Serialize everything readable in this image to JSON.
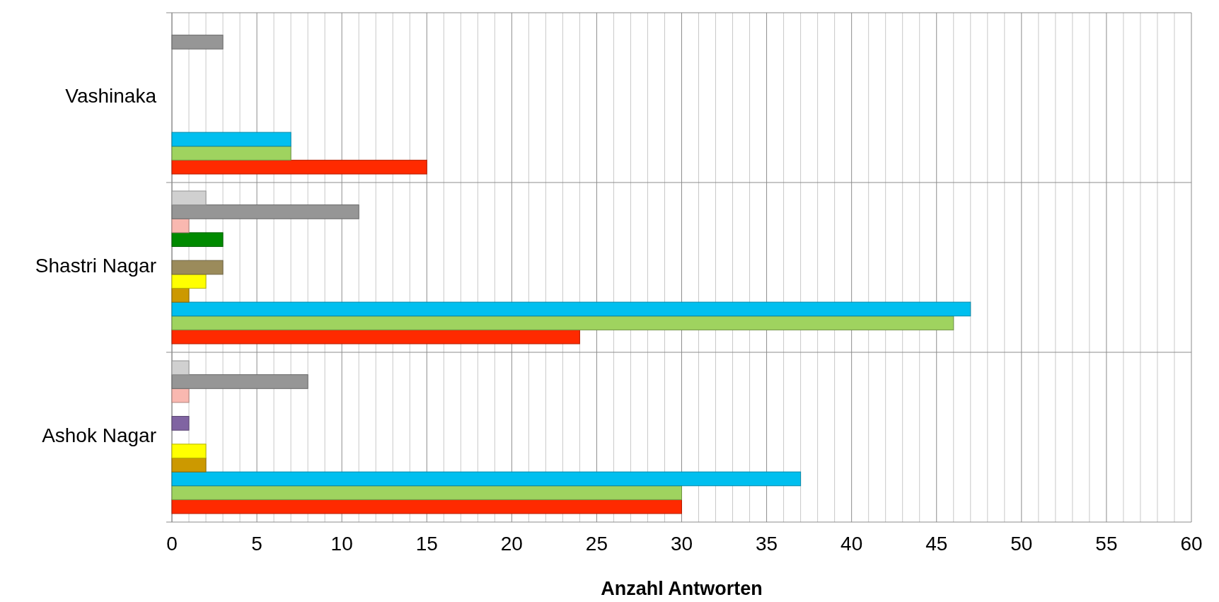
{
  "chart_data": {
    "type": "bar",
    "orientation": "horizontal",
    "xlabel": "Anzahl Antworten",
    "categories": [
      "Vashinaka",
      "Shastri Nagar",
      "Ashok Nagar"
    ],
    "series": [
      {
        "color": "#ff2a00",
        "values": [
          15,
          24,
          30
        ]
      },
      {
        "color": "#9fd35f",
        "values": [
          7,
          46,
          30
        ]
      },
      {
        "color": "#00bfef",
        "values": [
          7,
          47,
          37
        ]
      },
      {
        "color": "#cc9900",
        "values": [
          null,
          1,
          2
        ]
      },
      {
        "color": "#ffff00",
        "values": [
          null,
          2,
          2
        ]
      },
      {
        "color": "#9b8b5b",
        "values": [
          null,
          3,
          null
        ]
      },
      {
        "color": "#8064a2",
        "values": [
          null,
          null,
          1
        ]
      },
      {
        "color": "#008a00",
        "values": [
          null,
          3,
          null
        ]
      },
      {
        "color": "#f9b8b0",
        "values": [
          null,
          1,
          1
        ]
      },
      {
        "color": "#969696",
        "values": [
          3,
          11,
          8
        ]
      },
      {
        "color": "#d0d0d0",
        "values": [
          null,
          2,
          1
        ]
      }
    ],
    "xlim": [
      0,
      60
    ],
    "xticks": [
      0,
      {
        "value": 1,
        "label": null
      },
      {
        "value": 2,
        "label": null
      },
      {
        "value": 3,
        "label": null
      },
      {
        "value": 4,
        "label": null
      },
      5,
      {
        "value": 6,
        "label": null
      },
      {
        "value": 7,
        "label": null
      },
      {
        "value": 8,
        "label": null
      },
      {
        "value": 9,
        "label": null
      },
      10,
      {
        "value": 11,
        "label": null
      },
      {
        "value": 12,
        "label": null
      },
      {
        "value": 13,
        "label": null
      },
      {
        "value": 14,
        "label": null
      },
      15,
      {
        "value": 16,
        "label": null
      },
      {
        "value": 17,
        "label": null
      },
      {
        "value": 18,
        "label": null
      },
      {
        "value": 19,
        "label": null
      },
      20,
      {
        "value": 21,
        "label": null
      },
      {
        "value": 22,
        "label": null
      },
      {
        "value": 23,
        "label": null
      },
      {
        "value": 24,
        "label": null
      },
      25,
      {
        "value": 26,
        "label": null
      },
      {
        "value": 27,
        "label": null
      },
      {
        "value": 28,
        "label": null
      },
      {
        "value": 29,
        "label": null
      },
      30,
      {
        "value": 31,
        "label": null
      },
      {
        "value": 32,
        "label": null
      },
      {
        "value": 33,
        "label": null
      },
      {
        "value": 34,
        "label": null
      },
      35,
      {
        "value": 36,
        "label": null
      },
      {
        "value": 37,
        "label": null
      },
      {
        "value": 38,
        "label": null
      },
      {
        "value": 39,
        "label": null
      },
      40,
      {
        "value": 41,
        "label": null
      },
      {
        "value": 42,
        "label": null
      },
      {
        "value": 43,
        "label": null
      },
      {
        "value": 44,
        "label": null
      },
      45,
      {
        "value": 46,
        "label": null
      },
      {
        "value": 47,
        "label": null
      },
      {
        "value": 48,
        "label": null
      },
      {
        "value": 49,
        "label": null
      },
      50,
      {
        "value": 51,
        "label": null
      },
      {
        "value": 52,
        "label": null
      },
      {
        "value": 53,
        "label": null
      },
      {
        "value": 54,
        "label": null
      },
      55,
      {
        "value": 56,
        "label": null
      },
      {
        "value": 57,
        "label": null
      },
      {
        "value": 58,
        "label": null
      },
      {
        "value": 59,
        "label": null
      },
      60
    ],
    "grid": "x"
  }
}
